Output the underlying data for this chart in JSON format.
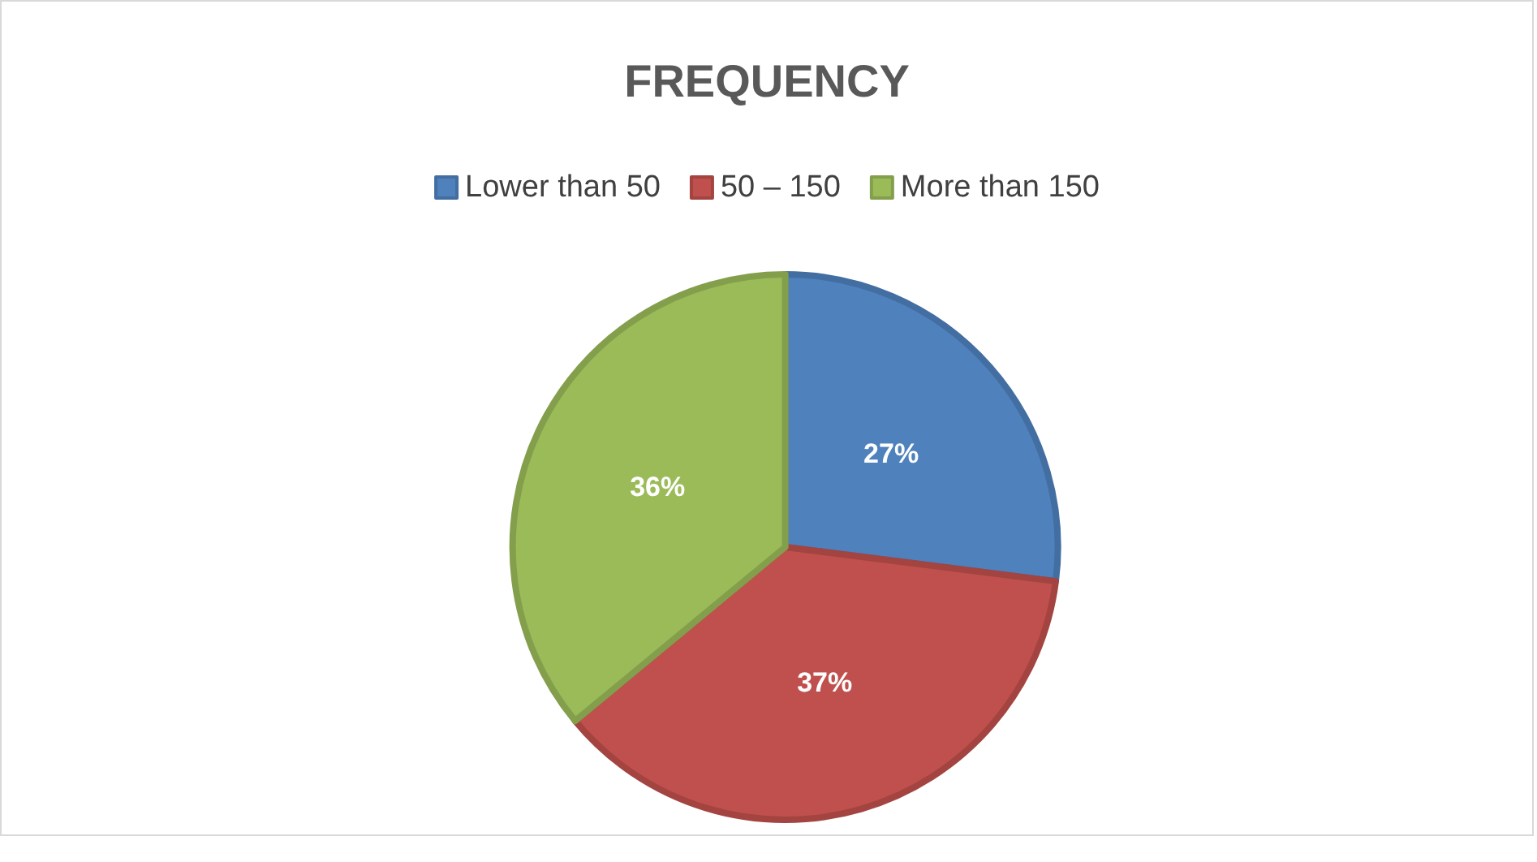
{
  "chart_data": {
    "type": "pie",
    "title": "FREQUENCY",
    "categories": [
      "Lower than 50",
      "50 – 150",
      "More than 150"
    ],
    "values": [
      27,
      37,
      36
    ],
    "colors": [
      "#4f81bd",
      "#c0504d",
      "#9bbb59"
    ],
    "value_labels": [
      "27%",
      "37%",
      "36%"
    ],
    "legend": "top"
  }
}
